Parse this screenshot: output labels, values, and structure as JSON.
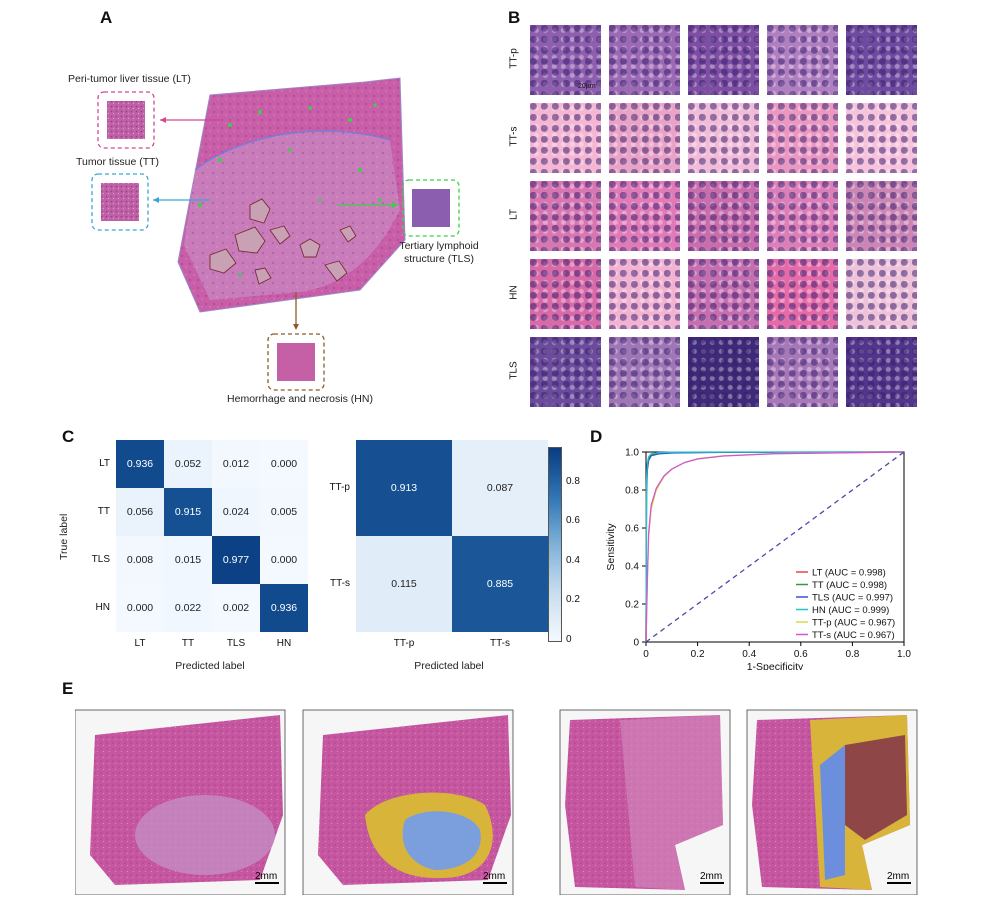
{
  "panels": {
    "A": "A",
    "B": "B",
    "C": "C",
    "D": "D",
    "E": "E"
  },
  "panelA": {
    "lt_label": "Peri-tumor liver tissue (LT)",
    "tt_label": "Tumor tissue (TT)",
    "tls_label_1": "Tertiary lymphoid",
    "tls_label_2": "structure (TLS)",
    "hn_label": "Hemorrhage and necrosis (HN)"
  },
  "panelB": {
    "rows": [
      "TT-p",
      "TT-s",
      "LT",
      "HN",
      "TLS"
    ],
    "scale": "20µm",
    "colors": {
      "TT-p": [
        "#8e5fae",
        "#9c6ab5",
        "#7d4ea3",
        "#b07fc0",
        "#6e4aa0"
      ],
      "TT-s": [
        "#f4b6d2",
        "#e9a3c6",
        "#f1bcd8",
        "#ea98c2",
        "#f6c3dc"
      ],
      "LT": [
        "#d876b2",
        "#e07bb8",
        "#c96dad",
        "#dc7fb9",
        "#cc86b6"
      ],
      "HN": [
        "#d86aa8",
        "#f2b2d2",
        "#c56fb0",
        "#e46aa8",
        "#eec2d8"
      ],
      "TLS": [
        "#6b4c9c",
        "#9f77b6",
        "#3d2a78",
        "#a678b8",
        "#51358a"
      ]
    }
  },
  "panelC": {
    "left": {
      "rows": [
        "LT",
        "TT",
        "TLS",
        "HN"
      ],
      "cols": [
        "LT",
        "TT",
        "TLS",
        "HN"
      ],
      "values": [
        [
          0.936,
          0.052,
          0.012,
          0.0
        ],
        [
          0.056,
          0.915,
          0.024,
          0.005
        ],
        [
          0.008,
          0.015,
          0.977,
          0.0
        ],
        [
          0.0,
          0.022,
          0.002,
          0.936
        ]
      ],
      "labels": [
        [
          "0.936",
          "0.052",
          "0.012",
          "0.000"
        ],
        [
          "0.056",
          "0.915",
          "0.024",
          "0.005"
        ],
        [
          "0.008",
          "0.015",
          "0.977",
          "0.000"
        ],
        [
          "0.000",
          "0.022",
          "0.002",
          "0.936"
        ]
      ],
      "ylabel": "True label",
      "xlabel": "Predicted label"
    },
    "right": {
      "rows": [
        "TT-p",
        "TT-s"
      ],
      "cols": [
        "TT-p",
        "TT-s"
      ],
      "values": [
        [
          0.913,
          0.087
        ],
        [
          0.115,
          0.885
        ]
      ],
      "labels": [
        [
          "0.913",
          "0.087"
        ],
        [
          "0.115",
          "0.885"
        ]
      ],
      "xlabel": "Predicted label"
    },
    "colorbar_ticks": [
      "0",
      "0.2",
      "0.4",
      "0.6",
      "0.8"
    ]
  },
  "chart_data": {
    "type": "line",
    "xlabel": "1-Specificity",
    "ylabel": "Sensitivity",
    "xlim": [
      0,
      1
    ],
    "ylim": [
      0,
      1
    ],
    "xticks": [
      "0",
      "0.2",
      "0.4",
      "0.6",
      "0.8",
      "1.0"
    ],
    "yticks": [
      "0",
      "0.2",
      "0.4",
      "0.6",
      "0.8",
      "1.0"
    ],
    "legend_position": "lower-right",
    "series": [
      {
        "name": "LT (AUC = 0.998)",
        "color": "#e8434f",
        "x": [
          0,
          0.002,
          0.005,
          0.01,
          0.02,
          0.05,
          0.1,
          0.3,
          1
        ],
        "y": [
          0,
          0.8,
          0.92,
          0.96,
          0.985,
          0.995,
          0.998,
          0.999,
          1
        ]
      },
      {
        "name": "TT (AUC = 0.998)",
        "color": "#2e9e3a",
        "x": [
          0,
          0.002,
          0.005,
          0.01,
          0.02,
          0.05,
          0.1,
          0.3,
          1
        ],
        "y": [
          0,
          0.82,
          0.93,
          0.965,
          0.985,
          0.994,
          0.997,
          0.999,
          1
        ]
      },
      {
        "name": "TLS (AUC = 0.997)",
        "color": "#3a4fd6",
        "x": [
          0,
          0.002,
          0.005,
          0.01,
          0.02,
          0.05,
          0.1,
          0.3,
          1
        ],
        "y": [
          0,
          0.78,
          0.9,
          0.955,
          0.98,
          0.99,
          0.995,
          0.998,
          1
        ]
      },
      {
        "name": "HN (AUC = 0.999)",
        "color": "#22c4c4",
        "x": [
          0,
          0.002,
          0.005,
          0.01,
          0.02,
          0.05,
          0.1,
          0.3,
          1
        ],
        "y": [
          0,
          0.85,
          0.94,
          0.975,
          0.99,
          0.997,
          0.999,
          1,
          1
        ]
      },
      {
        "name": "TT-p (AUC = 0.967)",
        "color": "#d9d94a",
        "x": [
          0,
          0.005,
          0.01,
          0.02,
          0.04,
          0.07,
          0.1,
          0.15,
          0.2,
          0.3,
          0.5,
          1
        ],
        "y": [
          0,
          0.3,
          0.55,
          0.7,
          0.8,
          0.87,
          0.91,
          0.945,
          0.965,
          0.98,
          0.992,
          1
        ]
      },
      {
        "name": "TT-s (AUC = 0.967)",
        "color": "#d255d4",
        "x": [
          0,
          0.005,
          0.01,
          0.02,
          0.04,
          0.07,
          0.1,
          0.15,
          0.2,
          0.3,
          0.5,
          1
        ],
        "y": [
          0,
          0.32,
          0.57,
          0.72,
          0.81,
          0.875,
          0.91,
          0.945,
          0.963,
          0.979,
          0.991,
          1
        ]
      },
      {
        "name": "",
        "color": "#4a4aa8",
        "x": [
          0,
          1
        ],
        "y": [
          0,
          1
        ],
        "dashed": true
      }
    ]
  },
  "panelE": {
    "scale_labels": [
      "2mm",
      "2mm",
      "2mm",
      "2mm"
    ]
  }
}
